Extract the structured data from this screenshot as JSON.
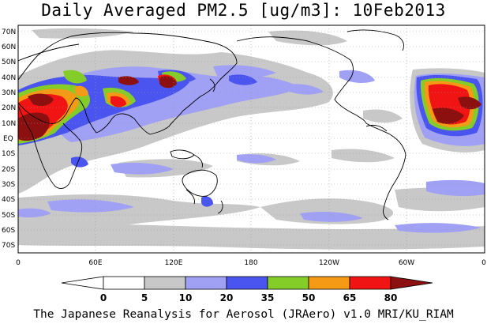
{
  "title": "Daily Averaged PM2.5 [ug/m3]: 10Feb2013",
  "footer": "The Japanese Reanalysis for Aerosol (JRAero) v1.0 MRI/KU_RIAM",
  "map": {
    "projection": "equirectangular",
    "lon_range": [
      0,
      360
    ],
    "lat_range": [
      -75,
      75
    ],
    "grid": "dotted",
    "lat_ticks": [
      "70N",
      "60N",
      "50N",
      "40N",
      "30N",
      "20N",
      "10N",
      "EQ",
      "10S",
      "20S",
      "30S",
      "40S",
      "50S",
      "60S",
      "70S"
    ],
    "lon_ticks": [
      "0",
      "60E",
      "120E",
      "180",
      "120W",
      "60W",
      "0"
    ]
  },
  "colorbar": {
    "unit": "ug/m3",
    "levels": [
      "0",
      "5",
      "10",
      "20",
      "35",
      "50",
      "65",
      "80"
    ],
    "colors": [
      "#ffffff",
      "#c8c8c8",
      "#a0a0f5",
      "#4a55f0",
      "#84cc28",
      "#f59a14",
      "#f01414",
      "#8c1010"
    ]
  }
}
